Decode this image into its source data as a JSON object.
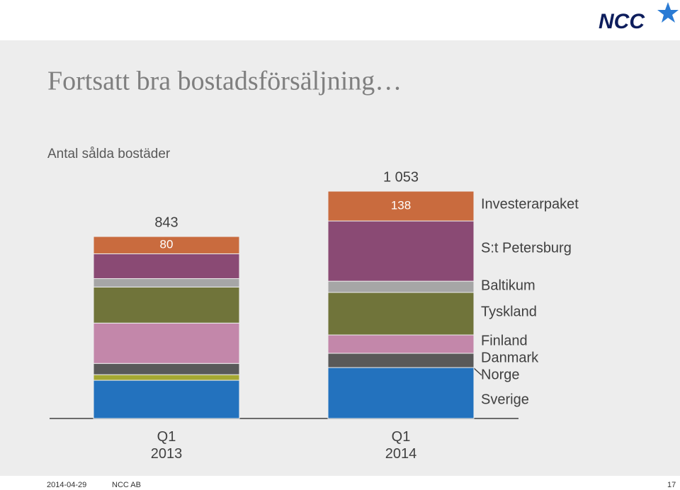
{
  "header": {
    "logo": "NCC"
  },
  "chart_data": {
    "type": "stacked-bar",
    "title": "Fortsatt bra bostadsförsäljning…",
    "subtitle": "Antal sålda bostäder",
    "categories": [
      "Q1 2013",
      "Q1 2014"
    ],
    "totals": [
      843,
      1053
    ],
    "total_labels": [
      "843",
      "1 053"
    ],
    "series": [
      {
        "name": "Sverige",
        "color": "#2372be",
        "values": [
          177,
          236
        ]
      },
      {
        "name": "Norge",
        "color": "#a5a832",
        "values": [
          26,
          0
        ]
      },
      {
        "name": "Danmark",
        "color": "#595959",
        "values": [
          52,
          66
        ]
      },
      {
        "name": "Finland",
        "color": "#c387aa",
        "values": [
          187,
          85
        ]
      },
      {
        "name": "Tyskland",
        "color": "#70743a",
        "values": [
          167,
          197
        ]
      },
      {
        "name": "Baltikum",
        "color": "#a6a6a6",
        "values": [
          39,
          52
        ]
      },
      {
        "name": "S:t Petersburg",
        "color": "#8a4a74",
        "values": [
          115,
          279
        ]
      },
      {
        "name": "Investerarpaket",
        "color": "#c96b3e",
        "values": [
          80,
          138
        ]
      }
    ]
  },
  "footer": {
    "date": "2014-04-29",
    "company": "NCC AB",
    "page": "17"
  }
}
